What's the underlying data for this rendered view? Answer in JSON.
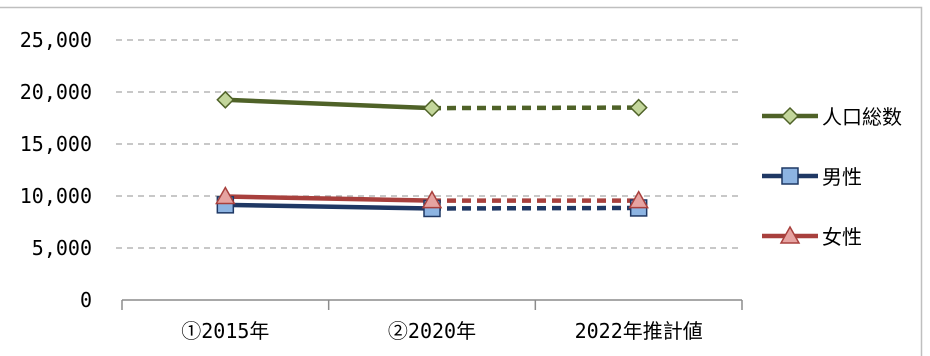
{
  "chart_data": {
    "type": "line",
    "categories": [
      "①2015年",
      "②2020年",
      "2022年推計値"
    ],
    "yticks": [
      "0",
      "5,000",
      "10,000",
      "15,000",
      "20,000",
      "25,000"
    ],
    "ylim": [
      0,
      25000
    ],
    "ytick_step": 5000,
    "grid": true,
    "legend_position": "right",
    "segment_styles": [
      "solid",
      "dashed"
    ],
    "series": [
      {
        "name": "人口総数",
        "values": [
          19250,
          18450,
          18500
        ],
        "color": "#4F6228",
        "marker": "diamond",
        "marker_fill": "#C3D69B"
      },
      {
        "name": "男性",
        "values": [
          9150,
          8800,
          8850
        ],
        "color": "#1F3864",
        "marker": "square",
        "marker_fill": "#8DB4E2"
      },
      {
        "name": "女性",
        "values": [
          9950,
          9550,
          9550
        ],
        "color": "#A8403D",
        "marker": "triangle",
        "marker_fill": "#E6A3A1"
      }
    ]
  }
}
